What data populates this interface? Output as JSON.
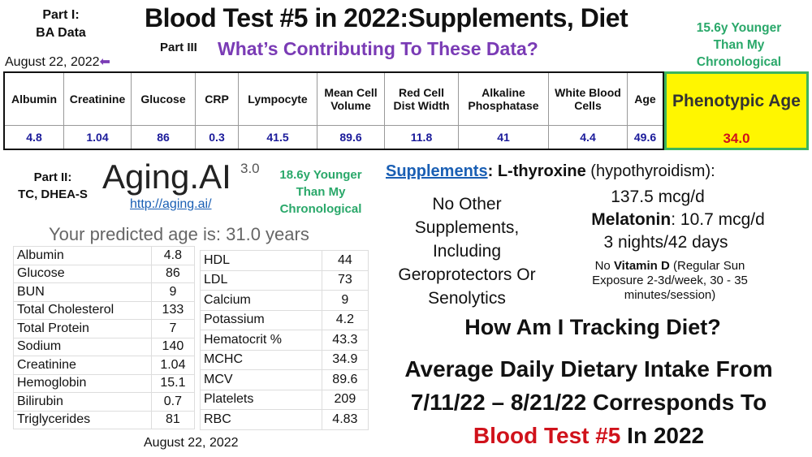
{
  "part1": {
    "line1": "Part I:",
    "line2": "BA Data"
  },
  "title": "Blood Test #5 in 2022:Supplements, Diet",
  "part3": {
    "label": "Part III",
    "question": "What’s Contributing To These Data?"
  },
  "date_top": "August 22, 2022",
  "younger_top": [
    "15.6y Younger",
    "Than My",
    "Chronological"
  ],
  "ba_table": {
    "headers": [
      "Albumin",
      "Creatinine",
      "Glucose",
      "CRP",
      "Lympocyte",
      "Mean Cell Volume",
      "Red Cell Dist Width",
      "Alkaline Phosphatase",
      "White Blood Cells",
      "Age"
    ],
    "values": [
      "4.8",
      "1.04",
      "86",
      "0.3",
      "41.5",
      "89.6",
      "11.8",
      "41",
      "4.4",
      "49.6"
    ],
    "phenotypic_label": "Phenotypic Age",
    "phenotypic_value": "34.0"
  },
  "part2": {
    "line1": "Part II:",
    "line2": "TC, DHEA-S"
  },
  "aging_ai": {
    "logo": "Aging.AI",
    "version": "3.0",
    "url": "http://aging.ai/",
    "predicted": "Your predicted age is: 31.0 years",
    "younger": [
      "18.6y Younger",
      "Than My",
      "Chronological"
    ],
    "left": [
      [
        "Albumin",
        "4.8"
      ],
      [
        "Glucose",
        "86"
      ],
      [
        "BUN",
        "9"
      ],
      [
        "Total Cholesterol",
        "133"
      ],
      [
        "Total Protein",
        "7"
      ],
      [
        "Sodium",
        "140"
      ],
      [
        "Creatinine",
        "1.04"
      ],
      [
        "Hemoglobin",
        "15.1"
      ],
      [
        "Bilirubin",
        "0.7"
      ],
      [
        "Triglycerides",
        "81"
      ]
    ],
    "right": [
      [
        "HDL",
        "44"
      ],
      [
        "LDL",
        "73"
      ],
      [
        "Calcium",
        "9"
      ],
      [
        "Potassium",
        "4.2"
      ],
      [
        "Hematocrit %",
        "43.3"
      ],
      [
        "MCHC",
        "34.9"
      ],
      [
        "MCV",
        "89.6"
      ],
      [
        "Platelets",
        "209"
      ],
      [
        "RBC",
        "4.83"
      ]
    ],
    "date": "August 22, 2022"
  },
  "supplements": {
    "label": "Supplements",
    "colon": ":",
    "thyroxine": "L-thyroxine",
    "thyroxine_note": "(hypothyroidism):",
    "thyroxine_dose": "137.5 mcg/d",
    "melatonin": "Melatonin",
    "melatonin_dose": ": 10.7 mcg/d",
    "melatonin_freq": "3 nights/42 days",
    "vitd_pre": "No ",
    "vitd": "Vitamin D",
    "vitd_note": " (Regular Sun Exposure 2-3d/week, 30 - 35 minutes/session)",
    "none": [
      "No Other",
      "Supplements,",
      "Including",
      "Geroprotectors Or",
      "Senolytics"
    ]
  },
  "diet": {
    "question": "How Am I Tracking Diet?",
    "line1": "Average Daily Dietary Intake From",
    "line2": "7/11/22 – 8/21/22 Corresponds To",
    "red": "Blood Test #5",
    "tail": " In 2022"
  },
  "colors": {
    "purple": "#7a3bb5",
    "green": "#2aa86a",
    "blue_link": "#1a5fb4",
    "red": "#d0121b",
    "yellow": "#fff600"
  }
}
